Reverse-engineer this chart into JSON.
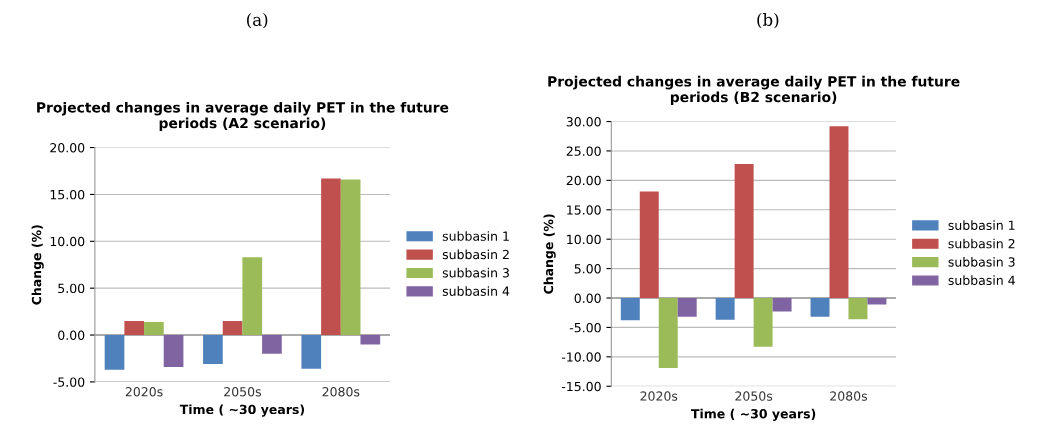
{
  "chart_data": [
    {
      "type": "bar",
      "title": "Projected changes in average daily PET in the future\nperiods (A2 scenario)",
      "xlabel": "Time ( ~30 years)",
      "ylabel": "Change (%)",
      "annotations": [
        "(a)"
      ],
      "categories": [
        "2020s",
        "2050s",
        "2080s"
      ],
      "series": [
        {
          "name": "subbasin 1",
          "color": "#4f81bd",
          "values": [
            -3.7,
            -3.1,
            -3.6
          ]
        },
        {
          "name": "subbasin 2",
          "color": "#c0504d",
          "values": [
            1.5,
            1.5,
            16.7
          ]
        },
        {
          "name": "subbasin 3",
          "color": "#9bbb59",
          "values": [
            1.4,
            8.3,
            16.6
          ]
        },
        {
          "name": "subbasin 4",
          "color": "#8064a2",
          "values": [
            -3.4,
            -2.0,
            -1.0
          ]
        }
      ],
      "ylim": [
        -5,
        20
      ],
      "yticks": [
        {
          "value": -5,
          "label": "-5.00"
        },
        {
          "value": 0,
          "label": "0.00"
        },
        {
          "value": 5,
          "label": "5.00"
        },
        {
          "value": 10,
          "label": "10.00"
        },
        {
          "value": 15,
          "label": "15.00"
        },
        {
          "value": 20,
          "label": "20.00"
        }
      ],
      "grid": "y",
      "legend": "right"
    },
    {
      "type": "bar",
      "title": "Projected changes in average daily PET in the future\nperiods (B2 scenario)",
      "xlabel": "Time ( ~30 years)",
      "ylabel": "Change (%)",
      "annotations": [
        "(b)"
      ],
      "categories": [
        "2020s",
        "2050s",
        "2080s"
      ],
      "series": [
        {
          "name": "subbasin 1",
          "color": "#4f81bd",
          "values": [
            -3.8,
            -3.7,
            -3.2
          ]
        },
        {
          "name": "subbasin 2",
          "color": "#c0504d",
          "values": [
            18.1,
            22.8,
            29.2
          ]
        },
        {
          "name": "subbasin 3",
          "color": "#9bbb59",
          "values": [
            -11.9,
            -8.3,
            -3.6
          ]
        },
        {
          "name": "subbasin 4",
          "color": "#8064a2",
          "values": [
            -3.2,
            -2.3,
            -1.1
          ]
        }
      ],
      "ylim": [
        -15,
        30
      ],
      "yticks": [
        {
          "value": -15,
          "label": "-15.00"
        },
        {
          "value": -10,
          "label": "-10.00"
        },
        {
          "value": -5,
          "label": "-5.00"
        },
        {
          "value": 0,
          "label": "0.00"
        },
        {
          "value": 5,
          "label": "5.00"
        },
        {
          "value": 10,
          "label": "10.00"
        },
        {
          "value": 15,
          "label": "15.00"
        },
        {
          "value": 20,
          "label": "20.00"
        },
        {
          "value": 25,
          "label": "25.00"
        },
        {
          "value": 30,
          "label": "30.00"
        }
      ],
      "grid": "y",
      "legend": "right"
    }
  ]
}
